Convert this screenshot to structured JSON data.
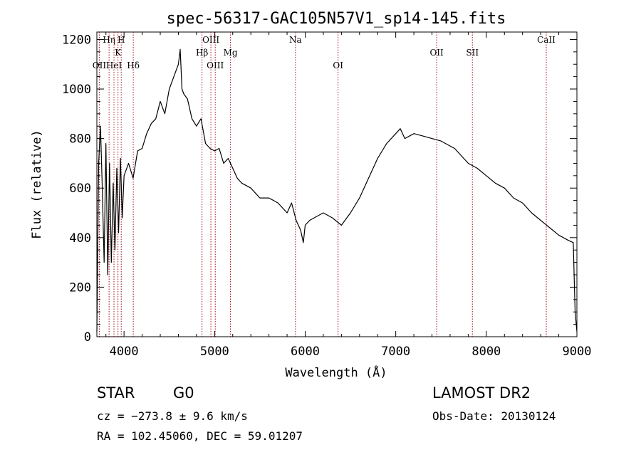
{
  "chart_data": {
    "type": "line",
    "title": "spec-56317-GAC105N57V1_sp14-145.fits",
    "xlabel": "Wavelength (Å)",
    "ylabel": "Flux (relative)",
    "xlim": [
      3700,
      9000
    ],
    "ylim": [
      0,
      1230
    ],
    "xticks": [
      4000,
      5000,
      6000,
      7000,
      8000,
      9000
    ],
    "yticks": [
      0,
      200,
      400,
      600,
      800,
      1000,
      1200
    ],
    "grid": false,
    "series": [
      {
        "x": [
          3700,
          3720,
          3740,
          3760,
          3780,
          3800,
          3820,
          3840,
          3860,
          3880,
          3900,
          3920,
          3940,
          3960,
          3980,
          4000,
          4050,
          4100,
          4150,
          4200,
          4250,
          4300,
          4350,
          4400,
          4450,
          4500,
          4550,
          4600,
          4620,
          4640,
          4660,
          4700,
          4750,
          4800,
          4850,
          4900,
          4950,
          5000,
          5050,
          5100,
          5150,
          5200,
          5250,
          5300,
          5400,
          5500,
          5600,
          5700,
          5800,
          5850,
          5900,
          5950,
          5980,
          6000,
          6050,
          6100,
          6200,
          6300,
          6400,
          6500,
          6600,
          6700,
          6800,
          6900,
          7000,
          7050,
          7100,
          7200,
          7300,
          7400,
          7500,
          7600,
          7650,
          7700,
          7800,
          7900,
          8000,
          8100,
          8200,
          8300,
          8400,
          8500,
          8600,
          8700,
          8800,
          8900,
          8960,
          8980,
          9000
        ],
        "y": [
          20,
          700,
          850,
          600,
          300,
          780,
          250,
          700,
          300,
          620,
          350,
          680,
          420,
          720,
          480,
          650,
          700,
          640,
          750,
          760,
          820,
          860,
          880,
          950,
          900,
          1000,
          1050,
          1100,
          1160,
          1000,
          980,
          960,
          880,
          850,
          880,
          780,
          760,
          750,
          760,
          700,
          720,
          680,
          640,
          620,
          600,
          560,
          560,
          540,
          500,
          540,
          470,
          430,
          380,
          450,
          470,
          480,
          500,
          480,
          450,
          500,
          560,
          640,
          720,
          780,
          820,
          840,
          800,
          820,
          810,
          800,
          790,
          770,
          760,
          740,
          700,
          680,
          650,
          620,
          600,
          560,
          540,
          500,
          470,
          440,
          410,
          390,
          380,
          100,
          20
        ]
      }
    ],
    "lines": [
      {
        "x": 3727,
        "label": "OII",
        "row": 3
      },
      {
        "x": 3835,
        "label": "Hη",
        "row": 1
      },
      {
        "x": 3889,
        "label": "HeI",
        "row": 3
      },
      {
        "x": 3933,
        "label": "K",
        "row": 2
      },
      {
        "x": 3969,
        "label": "H",
        "row": 1
      },
      {
        "x": 4102,
        "label": "Hδ",
        "row": 3
      },
      {
        "x": 4861,
        "label": "Hβ",
        "row": 2
      },
      {
        "x": 4959,
        "label": "OIII",
        "row": 1
      },
      {
        "x": 5007,
        "label": "OIII",
        "row": 3
      },
      {
        "x": 5175,
        "label": "Mg",
        "row": 2
      },
      {
        "x": 5893,
        "label": "Na",
        "row": 1
      },
      {
        "x": 6363,
        "label": "OI",
        "row": 3
      },
      {
        "x": 7452,
        "label": "OII",
        "row": 2
      },
      {
        "x": 7846,
        "label": "SII",
        "row": 2
      },
      {
        "x": 8662,
        "label": "CaII",
        "row": 1
      }
    ]
  },
  "info": {
    "class_label": "STAR",
    "subclass": "G0",
    "survey": "LAMOST DR2",
    "cz": "cz = −273.8 ± 9.6 km/s",
    "obs_date": "Obs-Date: 20130124",
    "coords": "RA = 102.45060, DEC =  59.01207"
  },
  "colors": {
    "spectrum": "#000000",
    "line_markers": "#a0101a"
  }
}
